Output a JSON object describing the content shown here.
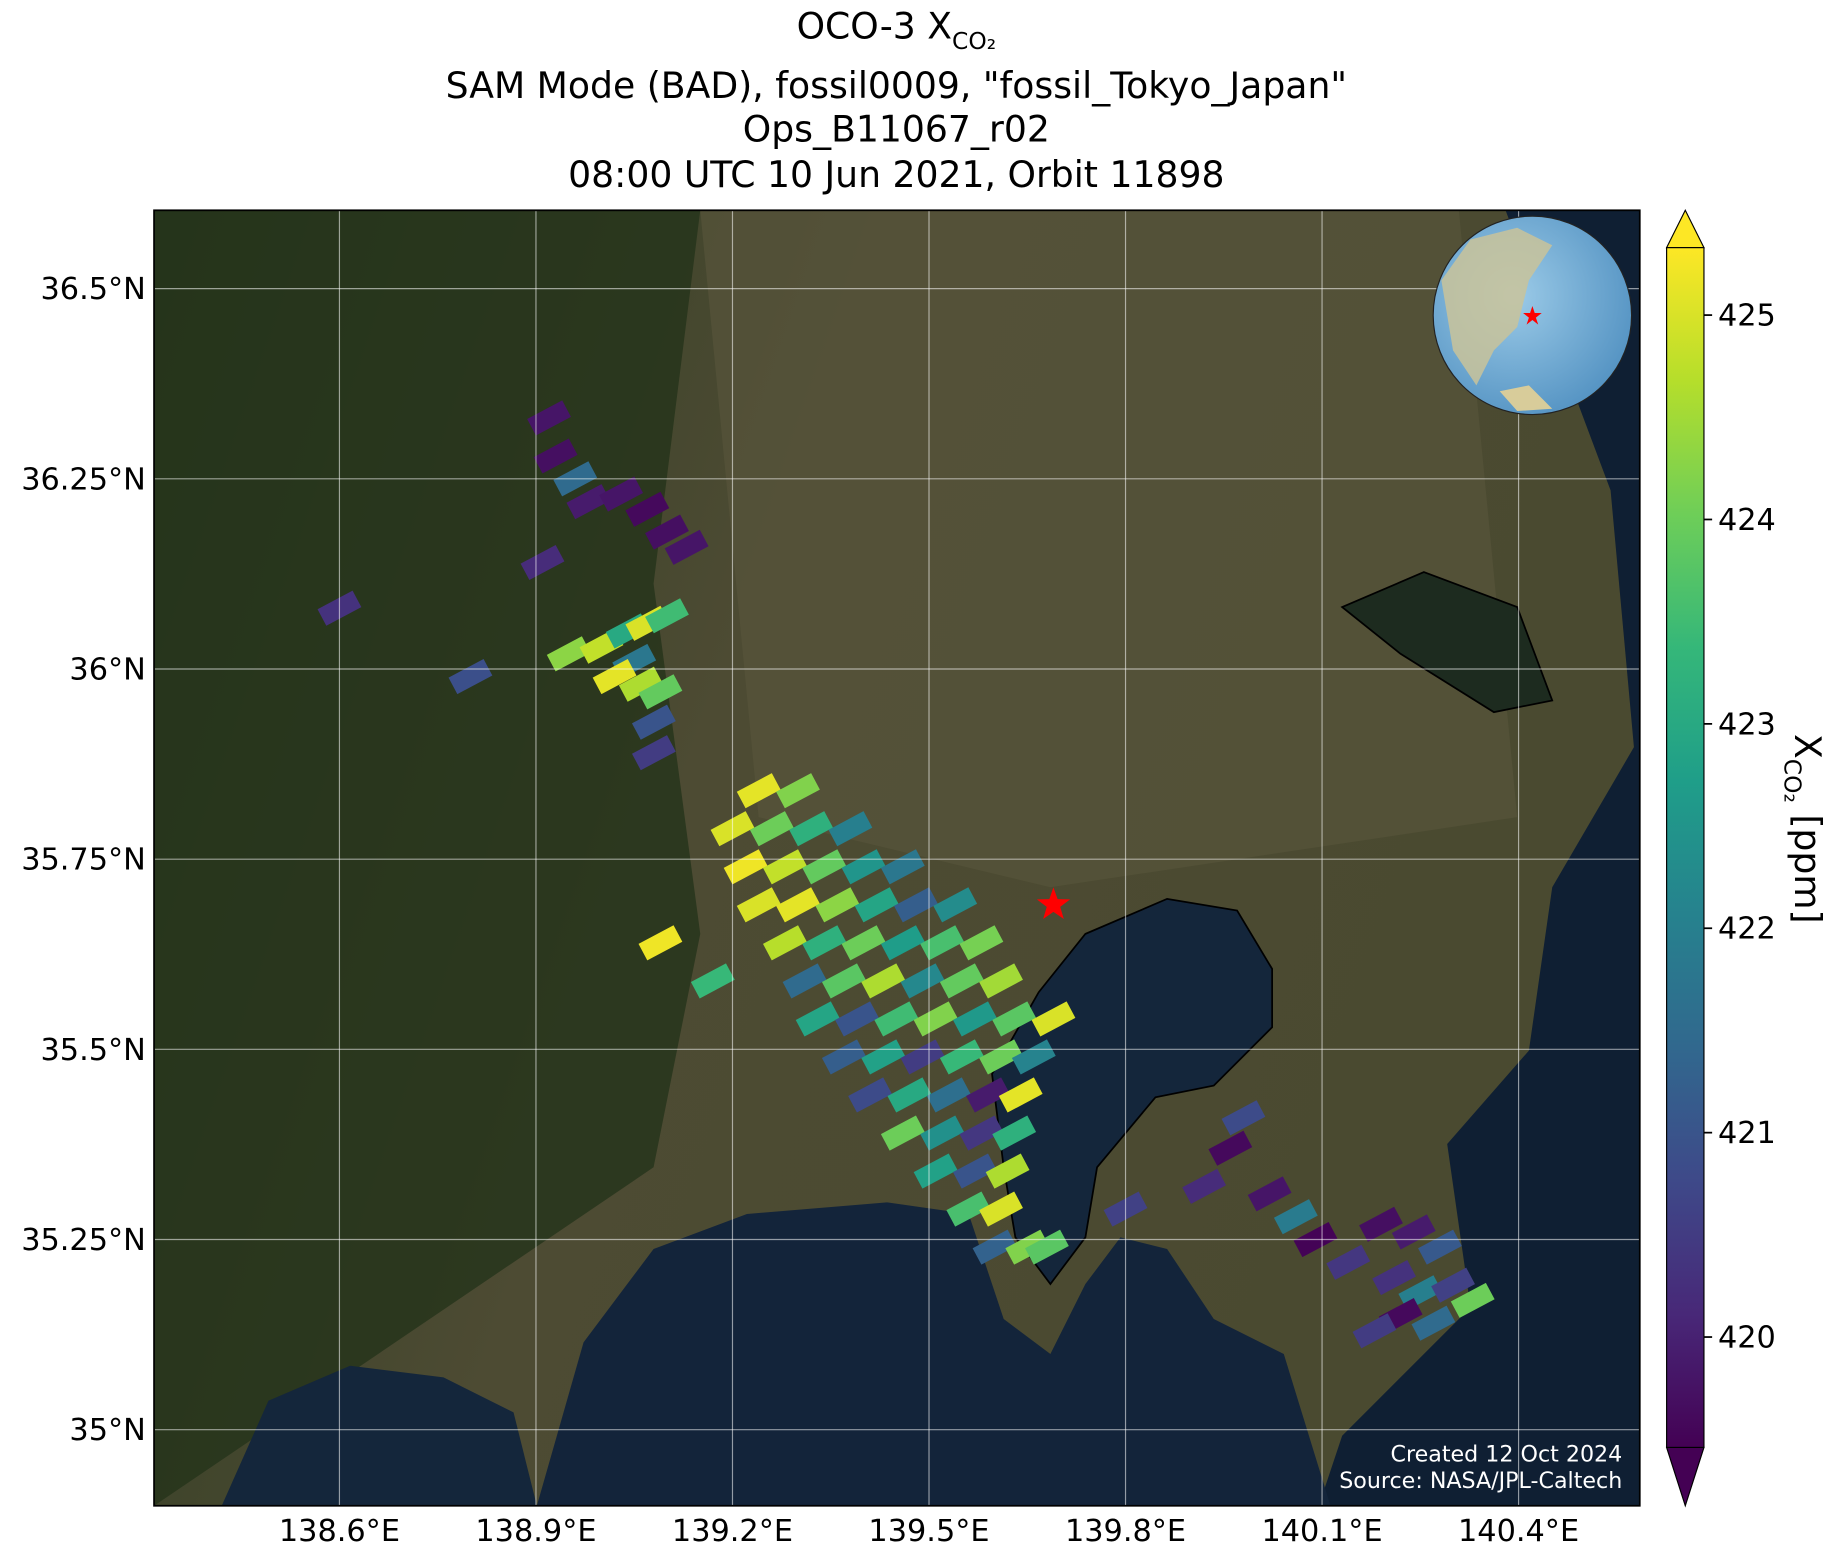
{
  "chart_data": {
    "type": "map",
    "title": {
      "text": "OCO-3 X",
      "subscript": "CO₂"
    },
    "subtitle": [
      "SAM Mode (BAD), fossil0009, \"fossil_Tokyo_Japan\"",
      "Ops_B11067_r02",
      "08:00 UTC 10 Jun 2021, Orbit 11898"
    ],
    "xlim": [
      138.317,
      140.585
    ],
    "ylim": [
      34.9,
      36.603
    ],
    "xticks": [
      {
        "value": 138.6,
        "label": "138.6°E"
      },
      {
        "value": 138.9,
        "label": "138.9°E"
      },
      {
        "value": 139.2,
        "label": "139.2°E"
      },
      {
        "value": 139.5,
        "label": "139.5°E"
      },
      {
        "value": 139.8,
        "label": "139.8°E"
      },
      {
        "value": 140.1,
        "label": "140.1°E"
      },
      {
        "value": 140.4,
        "label": "140.4°E"
      }
    ],
    "yticks": [
      {
        "value": 35,
        "label": "35°N"
      },
      {
        "value": 35.25,
        "label": "35.25°N"
      },
      {
        "value": 35.5,
        "label": "35.5°N"
      },
      {
        "value": 35.75,
        "label": "35.75°N"
      },
      {
        "value": 36,
        "label": "36°N"
      },
      {
        "value": 36.25,
        "label": "36.25°N"
      },
      {
        "value": 36.5,
        "label": "36.5°N"
      }
    ],
    "grid": true,
    "target": {
      "x": 139.69,
      "y": 35.69,
      "color": "#ff0000"
    },
    "colormap": [
      "#440154",
      "#482878",
      "#3e4989",
      "#31688e",
      "#26828e",
      "#1f9e89",
      "#35b779",
      "#6ece58",
      "#b5de2b",
      "#fde725"
    ],
    "clim": [
      419.46,
      425.33
    ],
    "cbar_ticks": [
      420,
      421,
      422,
      423,
      424,
      425
    ],
    "cbar_label": {
      "text": "X",
      "subscript": "CO₂",
      "unit": "[ppm]"
    },
    "credits": [
      "Created 12 Oct 2024",
      "Source: NASA/JPL-Caltech"
    ],
    "series": [
      {
        "name": "XCO2",
        "x": [
          138.92,
          138.93,
          138.96,
          138.98,
          139.03,
          139.07,
          139.1,
          139.13,
          138.91,
          138.6,
          138.8,
          138.95,
          139.0,
          139.04,
          139.07,
          139.1,
          139.05,
          139.02,
          139.06,
          139.09,
          139.08,
          139.08,
          139.24,
          139.3,
          139.2,
          139.26,
          139.32,
          139.38,
          139.22,
          139.28,
          139.34,
          139.4,
          139.46,
          139.24,
          139.3,
          139.36,
          139.42,
          139.48,
          139.54,
          139.09,
          139.28,
          139.34,
          139.4,
          139.46,
          139.52,
          139.58,
          139.17,
          139.31,
          139.37,
          139.43,
          139.49,
          139.55,
          139.61,
          139.33,
          139.39,
          139.45,
          139.51,
          139.57,
          139.63,
          139.69,
          139.37,
          139.43,
          139.49,
          139.55,
          139.61,
          139.66,
          139.41,
          139.47,
          139.53,
          139.59,
          139.64,
          139.46,
          139.52,
          139.58,
          139.63,
          139.51,
          139.57,
          139.62,
          139.56,
          139.61,
          139.6,
          139.65,
          139.68,
          139.98,
          139.96,
          139.92,
          139.8,
          140.02,
          140.06,
          140.09,
          140.14,
          140.19,
          140.24,
          140.28,
          140.21,
          140.25,
          140.3,
          140.33,
          140.22,
          140.18,
          140.27
        ],
        "y": [
          36.33,
          36.28,
          36.25,
          36.22,
          36.23,
          36.21,
          36.18,
          36.16,
          36.14,
          36.08,
          35.99,
          36.02,
          36.03,
          36.05,
          36.06,
          36.07,
          36.01,
          35.99,
          35.98,
          35.97,
          35.93,
          35.89,
          35.84,
          35.84,
          35.79,
          35.79,
          35.79,
          35.79,
          35.74,
          35.74,
          35.74,
          35.74,
          35.74,
          35.69,
          35.69,
          35.69,
          35.69,
          35.69,
          35.69,
          35.64,
          35.64,
          35.64,
          35.64,
          35.64,
          35.64,
          35.64,
          35.59,
          35.59,
          35.59,
          35.59,
          35.59,
          35.59,
          35.59,
          35.54,
          35.54,
          35.54,
          35.54,
          35.54,
          35.54,
          35.54,
          35.49,
          35.49,
          35.49,
          35.49,
          35.49,
          35.49,
          35.44,
          35.44,
          35.44,
          35.44,
          35.44,
          35.39,
          35.39,
          35.39,
          35.39,
          35.34,
          35.34,
          35.34,
          35.29,
          35.29,
          35.24,
          35.24,
          35.24,
          35.41,
          35.37,
          35.32,
          35.29,
          35.31,
          35.28,
          35.25,
          35.22,
          35.27,
          35.26,
          35.24,
          35.2,
          35.18,
          35.19,
          35.17,
          35.15,
          35.13,
          35.14
        ],
        "values": [
          419.8,
          419.7,
          421.5,
          419.9,
          419.8,
          419.6,
          419.7,
          419.8,
          420.2,
          420.3,
          420.9,
          424.3,
          424.8,
          423.0,
          425.0,
          423.5,
          421.8,
          425.1,
          424.6,
          423.9,
          421.0,
          420.5,
          425.1,
          424.2,
          425.0,
          424.0,
          423.2,
          422.0,
          425.2,
          424.8,
          423.9,
          422.5,
          421.8,
          425.0,
          425.1,
          424.3,
          422.9,
          421.2,
          422.3,
          425.2,
          424.7,
          423.2,
          424.0,
          422.7,
          423.6,
          424.1,
          423.4,
          421.5,
          423.8,
          424.6,
          422.2,
          423.9,
          424.5,
          422.9,
          421.0,
          423.5,
          424.2,
          422.6,
          423.8,
          425.0,
          421.2,
          422.8,
          420.5,
          423.4,
          424.0,
          422.1,
          420.8,
          423.0,
          421.6,
          419.9,
          425.1,
          424.0,
          422.4,
          420.4,
          423.2,
          422.8,
          421.0,
          424.6,
          423.6,
          425.0,
          421.3,
          424.2,
          423.8,
          420.8,
          419.6,
          420.2,
          420.6,
          419.8,
          421.9,
          419.5,
          420.4,
          419.7,
          419.9,
          421.1,
          420.3,
          422.0,
          420.6,
          424.0,
          419.6,
          420.5,
          421.5
        ]
      }
    ]
  }
}
